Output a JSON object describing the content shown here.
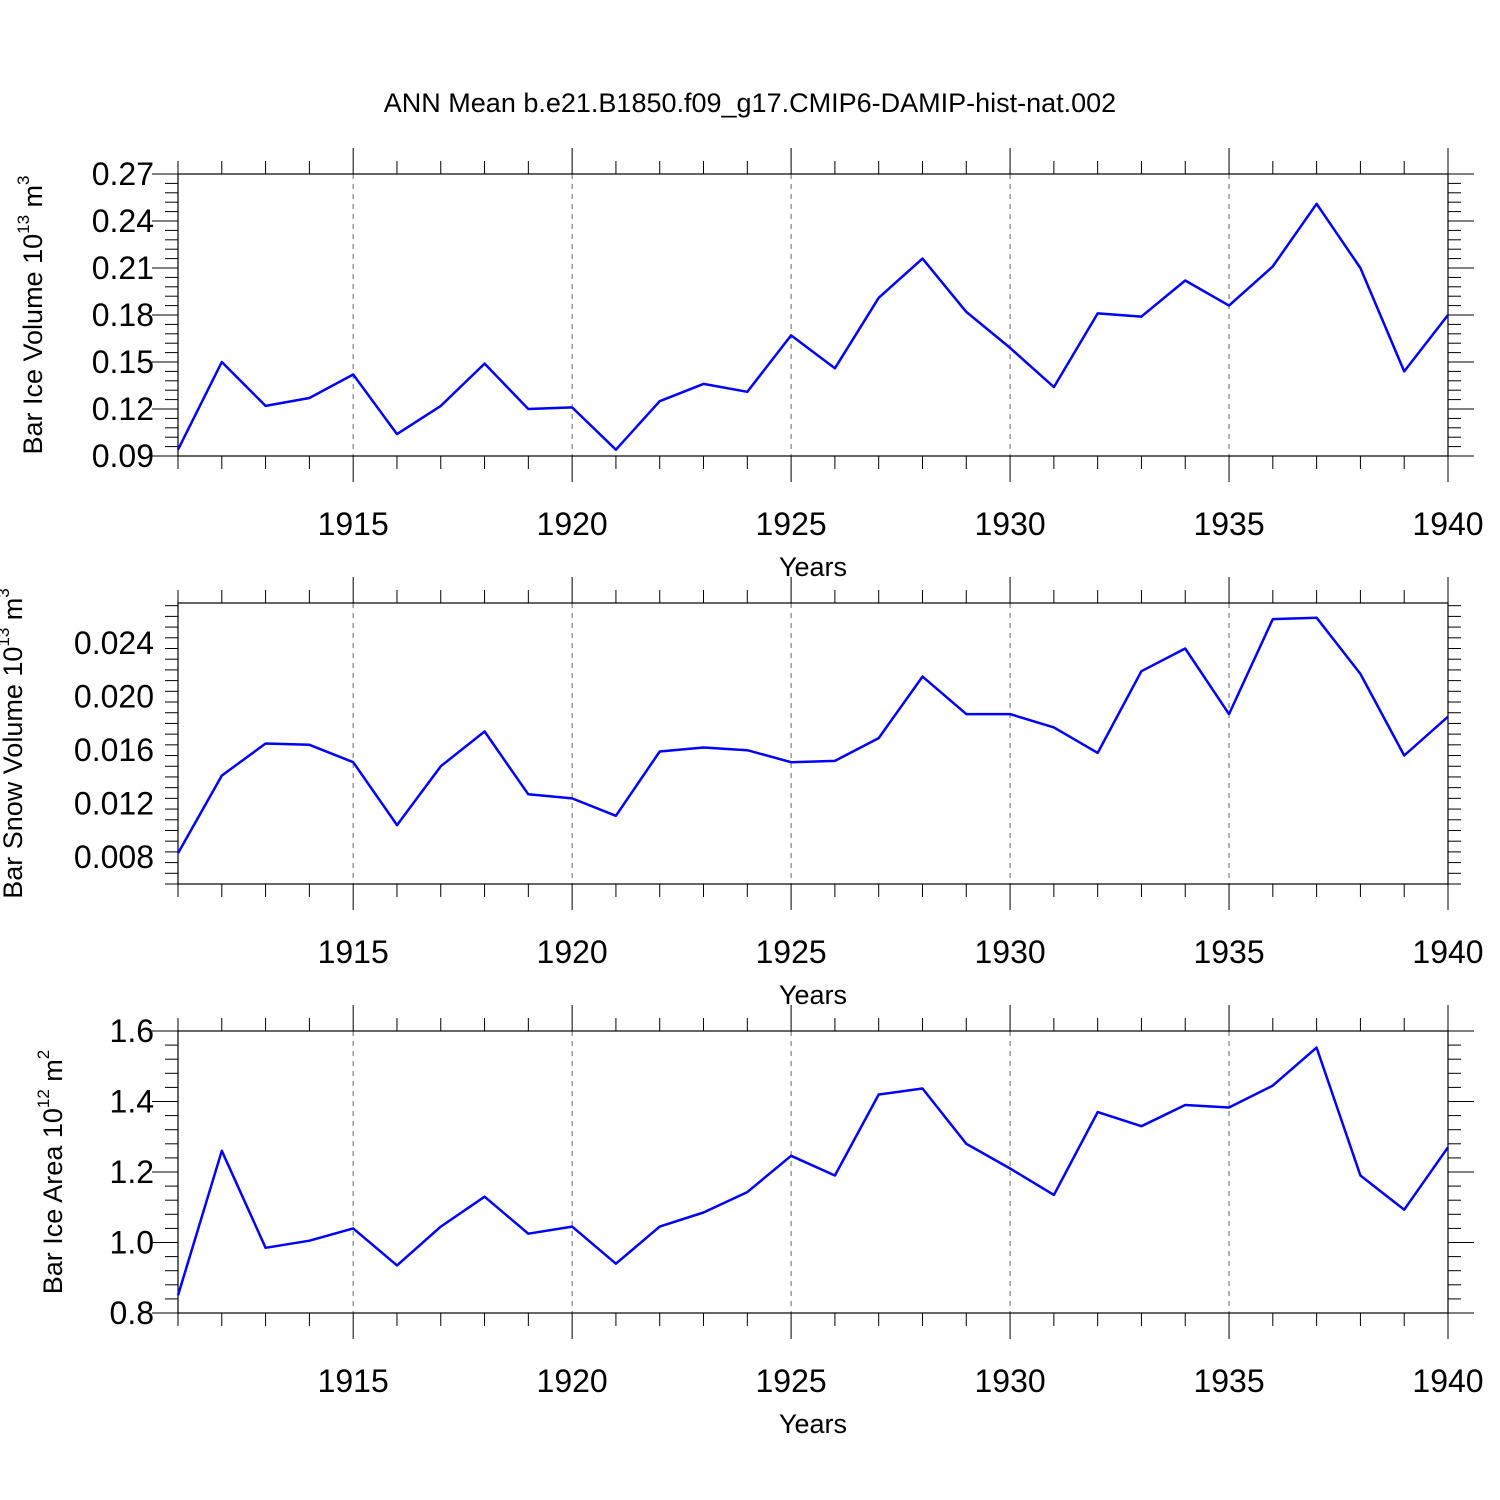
{
  "title": "ANN Mean b.e21.B1850.f09_g17.CMIP6-DAMIP-hist-nat.002",
  "line_color": "#0000ff",
  "chart_data": [
    {
      "type": "line",
      "xlabel": "Years",
      "ylabel_prefix": "Bar Ice Volume 10",
      "ylabel_exp": "13",
      "ylabel_unit": " m",
      "ylabel_unit_exp": "3",
      "xlim": [
        1911,
        1940
      ],
      "xticks": [
        1915,
        1920,
        1925,
        1930,
        1935,
        1940
      ],
      "xtick_labels": [
        "1915",
        "1920",
        "1925",
        "1930",
        "1935",
        "1940"
      ],
      "ylim": [
        0.09,
        0.27
      ],
      "yticks": [
        0.09,
        0.12,
        0.15,
        0.18,
        0.21,
        0.24,
        0.27
      ],
      "ytick_labels": [
        "0.09",
        "0.12",
        "0.15",
        "0.18",
        "0.21",
        "0.24",
        "0.27"
      ],
      "grid": "vertical dashed at major x ticks",
      "series": [
        {
          "x": [
            1911,
            1912,
            1913,
            1914,
            1915,
            1916,
            1917,
            1918,
            1919,
            1920,
            1921,
            1922,
            1923,
            1924,
            1925,
            1926,
            1927,
            1928,
            1929,
            1930,
            1931,
            1932,
            1933,
            1934,
            1935,
            1936,
            1937,
            1938,
            1939,
            1940
          ],
          "values": [
            0.094,
            0.15,
            0.122,
            0.127,
            0.142,
            0.104,
            0.122,
            0.149,
            0.12,
            0.121,
            0.094,
            0.125,
            0.136,
            0.131,
            0.167,
            0.146,
            0.191,
            0.216,
            0.182,
            0.159,
            0.134,
            0.181,
            0.179,
            0.202,
            0.186,
            0.211,
            0.251,
            0.21,
            0.144,
            0.18
          ]
        }
      ]
    },
    {
      "type": "line",
      "xlabel": "Years",
      "ylabel_prefix": "Bar Snow Volume 10",
      "ylabel_exp": "13",
      "ylabel_unit": " m",
      "ylabel_unit_exp": "3",
      "xlim": [
        1911,
        1940
      ],
      "xticks": [
        1915,
        1920,
        1925,
        1930,
        1935,
        1940
      ],
      "xtick_labels": [
        "1915",
        "1920",
        "1925",
        "1930",
        "1935",
        "1940"
      ],
      "ylim": [
        0.006,
        0.027
      ],
      "yticks": [
        0.008,
        0.012,
        0.016,
        0.02,
        0.024
      ],
      "ytick_labels": [
        "0.008",
        "0.012",
        "0.016",
        "0.020",
        "0.024"
      ],
      "grid": "vertical dashed at major x ticks",
      "series": [
        {
          "x": [
            1911,
            1912,
            1913,
            1914,
            1915,
            1916,
            1917,
            1918,
            1919,
            1920,
            1921,
            1922,
            1923,
            1924,
            1925,
            1926,
            1927,
            1928,
            1929,
            1930,
            1931,
            1932,
            1933,
            1934,
            1935,
            1936,
            1937,
            1938,
            1939,
            1940
          ],
          "values": [
            0.0083,
            0.0141,
            0.0165,
            0.0164,
            0.0151,
            0.0104,
            0.0148,
            0.0174,
            0.0127,
            0.0124,
            0.0111,
            0.0159,
            0.0162,
            0.016,
            0.0151,
            0.0152,
            0.0169,
            0.0215,
            0.0187,
            0.0187,
            0.0177,
            0.0158,
            0.0219,
            0.0236,
            0.0187,
            0.0258,
            0.0259,
            0.0217,
            0.0156,
            0.0185
          ]
        }
      ]
    },
    {
      "type": "line",
      "xlabel": "Years",
      "ylabel_prefix": "Bar Ice Area 10",
      "ylabel_exp": "12",
      "ylabel_unit": " m",
      "ylabel_unit_exp": "2",
      "xlim": [
        1911,
        1940
      ],
      "xticks": [
        1915,
        1920,
        1925,
        1930,
        1935,
        1940
      ],
      "xtick_labels": [
        "1915",
        "1920",
        "1925",
        "1930",
        "1935",
        "1940"
      ],
      "ylim": [
        0.8,
        1.6
      ],
      "yticks": [
        0.8,
        1.0,
        1.2,
        1.4,
        1.6
      ],
      "ytick_labels": [
        "0.8",
        "1.0",
        "1.2",
        "1.4",
        "1.6"
      ],
      "grid": "vertical dashed at major x ticks",
      "series": [
        {
          "x": [
            1911,
            1912,
            1913,
            1914,
            1915,
            1916,
            1917,
            1918,
            1919,
            1920,
            1921,
            1922,
            1923,
            1924,
            1925,
            1926,
            1927,
            1928,
            1929,
            1930,
            1931,
            1932,
            1933,
            1934,
            1935,
            1936,
            1937,
            1938,
            1939,
            1940
          ],
          "values": [
            0.85,
            1.26,
            0.985,
            1.005,
            1.04,
            0.935,
            1.045,
            1.13,
            1.025,
            1.045,
            0.94,
            1.045,
            1.085,
            1.143,
            1.246,
            1.19,
            1.42,
            1.437,
            1.28,
            1.21,
            1.135,
            1.37,
            1.33,
            1.39,
            1.383,
            1.445,
            1.553,
            1.19,
            1.093,
            1.27
          ]
        }
      ]
    }
  ]
}
